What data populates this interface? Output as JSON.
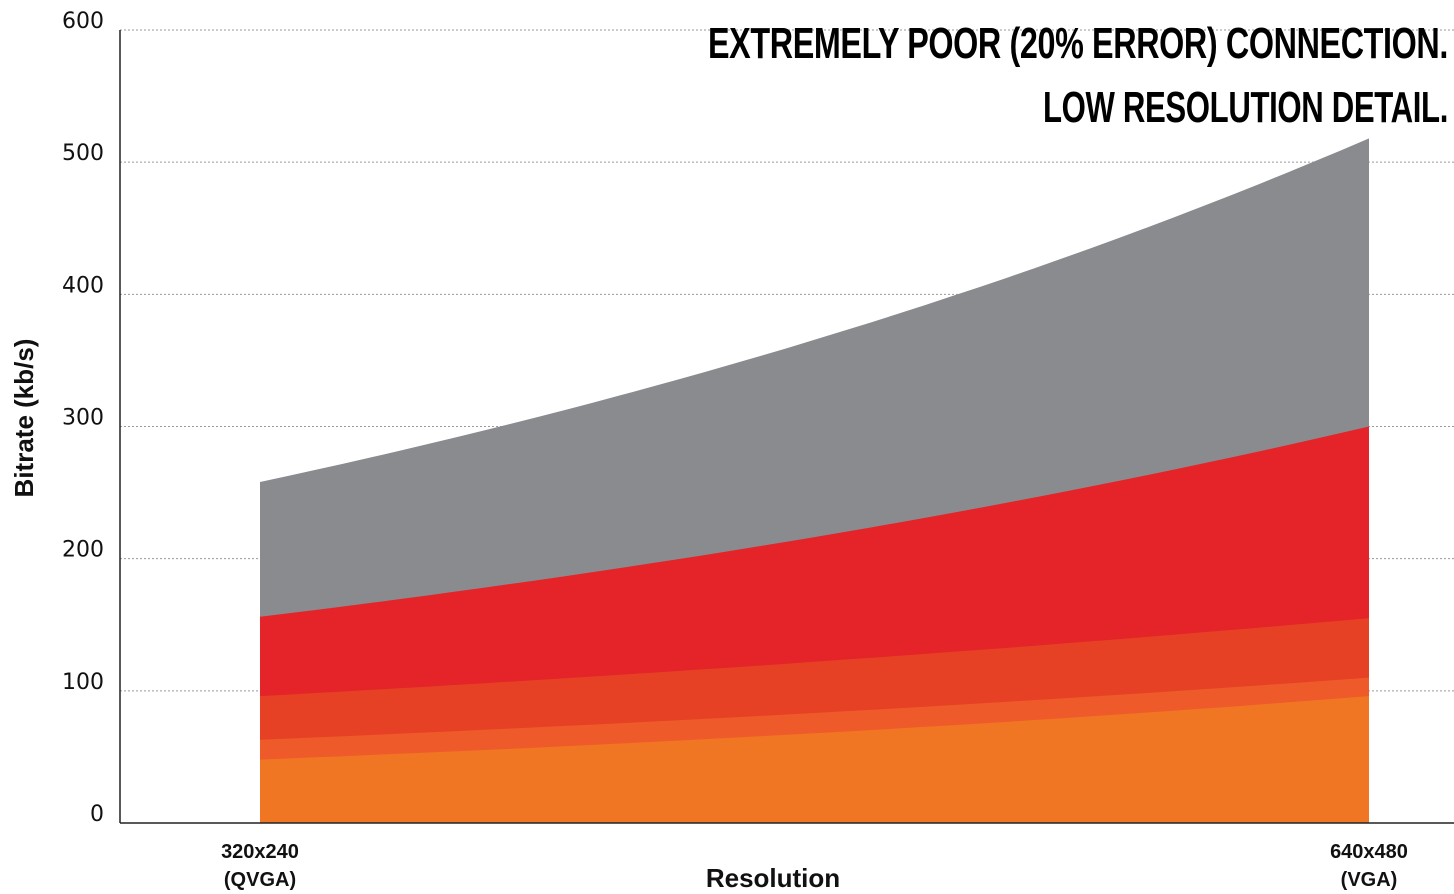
{
  "chart_data": {
    "type": "area",
    "title_lines": [
      "EXTREMELY POOR (20% ERROR) CONNECTION.",
      "LOW RESOLUTION DETAIL."
    ],
    "xlabel": "Resolution",
    "ylabel": "Bitrate (kb/s)",
    "ylim": [
      0,
      600
    ],
    "yticks": [
      0,
      100,
      200,
      300,
      400,
      500,
      600
    ],
    "grid": true,
    "x_categories": [
      {
        "line1": "320x240",
        "line2": "(QVGA)"
      },
      {
        "line1": "640x480",
        "line2": "(VGA)"
      }
    ],
    "series": [
      {
        "color": "#8a8b8f",
        "start": 258,
        "end": 518
      },
      {
        "color": "#e42428",
        "start": 156,
        "end": 300
      },
      {
        "color": "#e64125",
        "start": 96,
        "end": 155
      },
      {
        "color": "#ef5a2a",
        "start": 63,
        "end": 110
      },
      {
        "color": "#f07623",
        "start": 48,
        "end": 96
      }
    ]
  }
}
